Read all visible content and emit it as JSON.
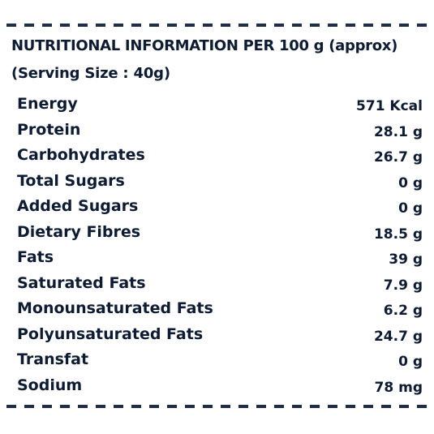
{
  "header": {
    "title": "NUTRITIONAL INFORMATION PER 100 g (approx)",
    "serving": "(Serving Size : 40g)"
  },
  "nutrients": [
    {
      "name": "Energy",
      "value": "571 Kcal"
    },
    {
      "name": "Protein",
      "value": "28.1 g"
    },
    {
      "name": "Carbohydrates",
      "value": "26.7 g"
    },
    {
      "name": "Total Sugars",
      "value": "0 g"
    },
    {
      "name": "Added Sugars",
      "value": "0 g"
    },
    {
      "name": "Dietary Fibres",
      "value": "18.5 g"
    },
    {
      "name": "Fats",
      "value": "39 g"
    },
    {
      "name": "Saturated Fats",
      "value": "7.9 g"
    },
    {
      "name": "Monounsaturated Fats",
      "value": "6.2 g"
    },
    {
      "name": "Polyunsaturated Fats",
      "value": "24.7 g"
    },
    {
      "name": "Transfat",
      "value": "0 g"
    },
    {
      "name": "Sodium",
      "value": "78 mg"
    }
  ],
  "colors": {
    "text": "#0d1b33",
    "dash": "#1f2d4a",
    "background": "#ffffff"
  }
}
